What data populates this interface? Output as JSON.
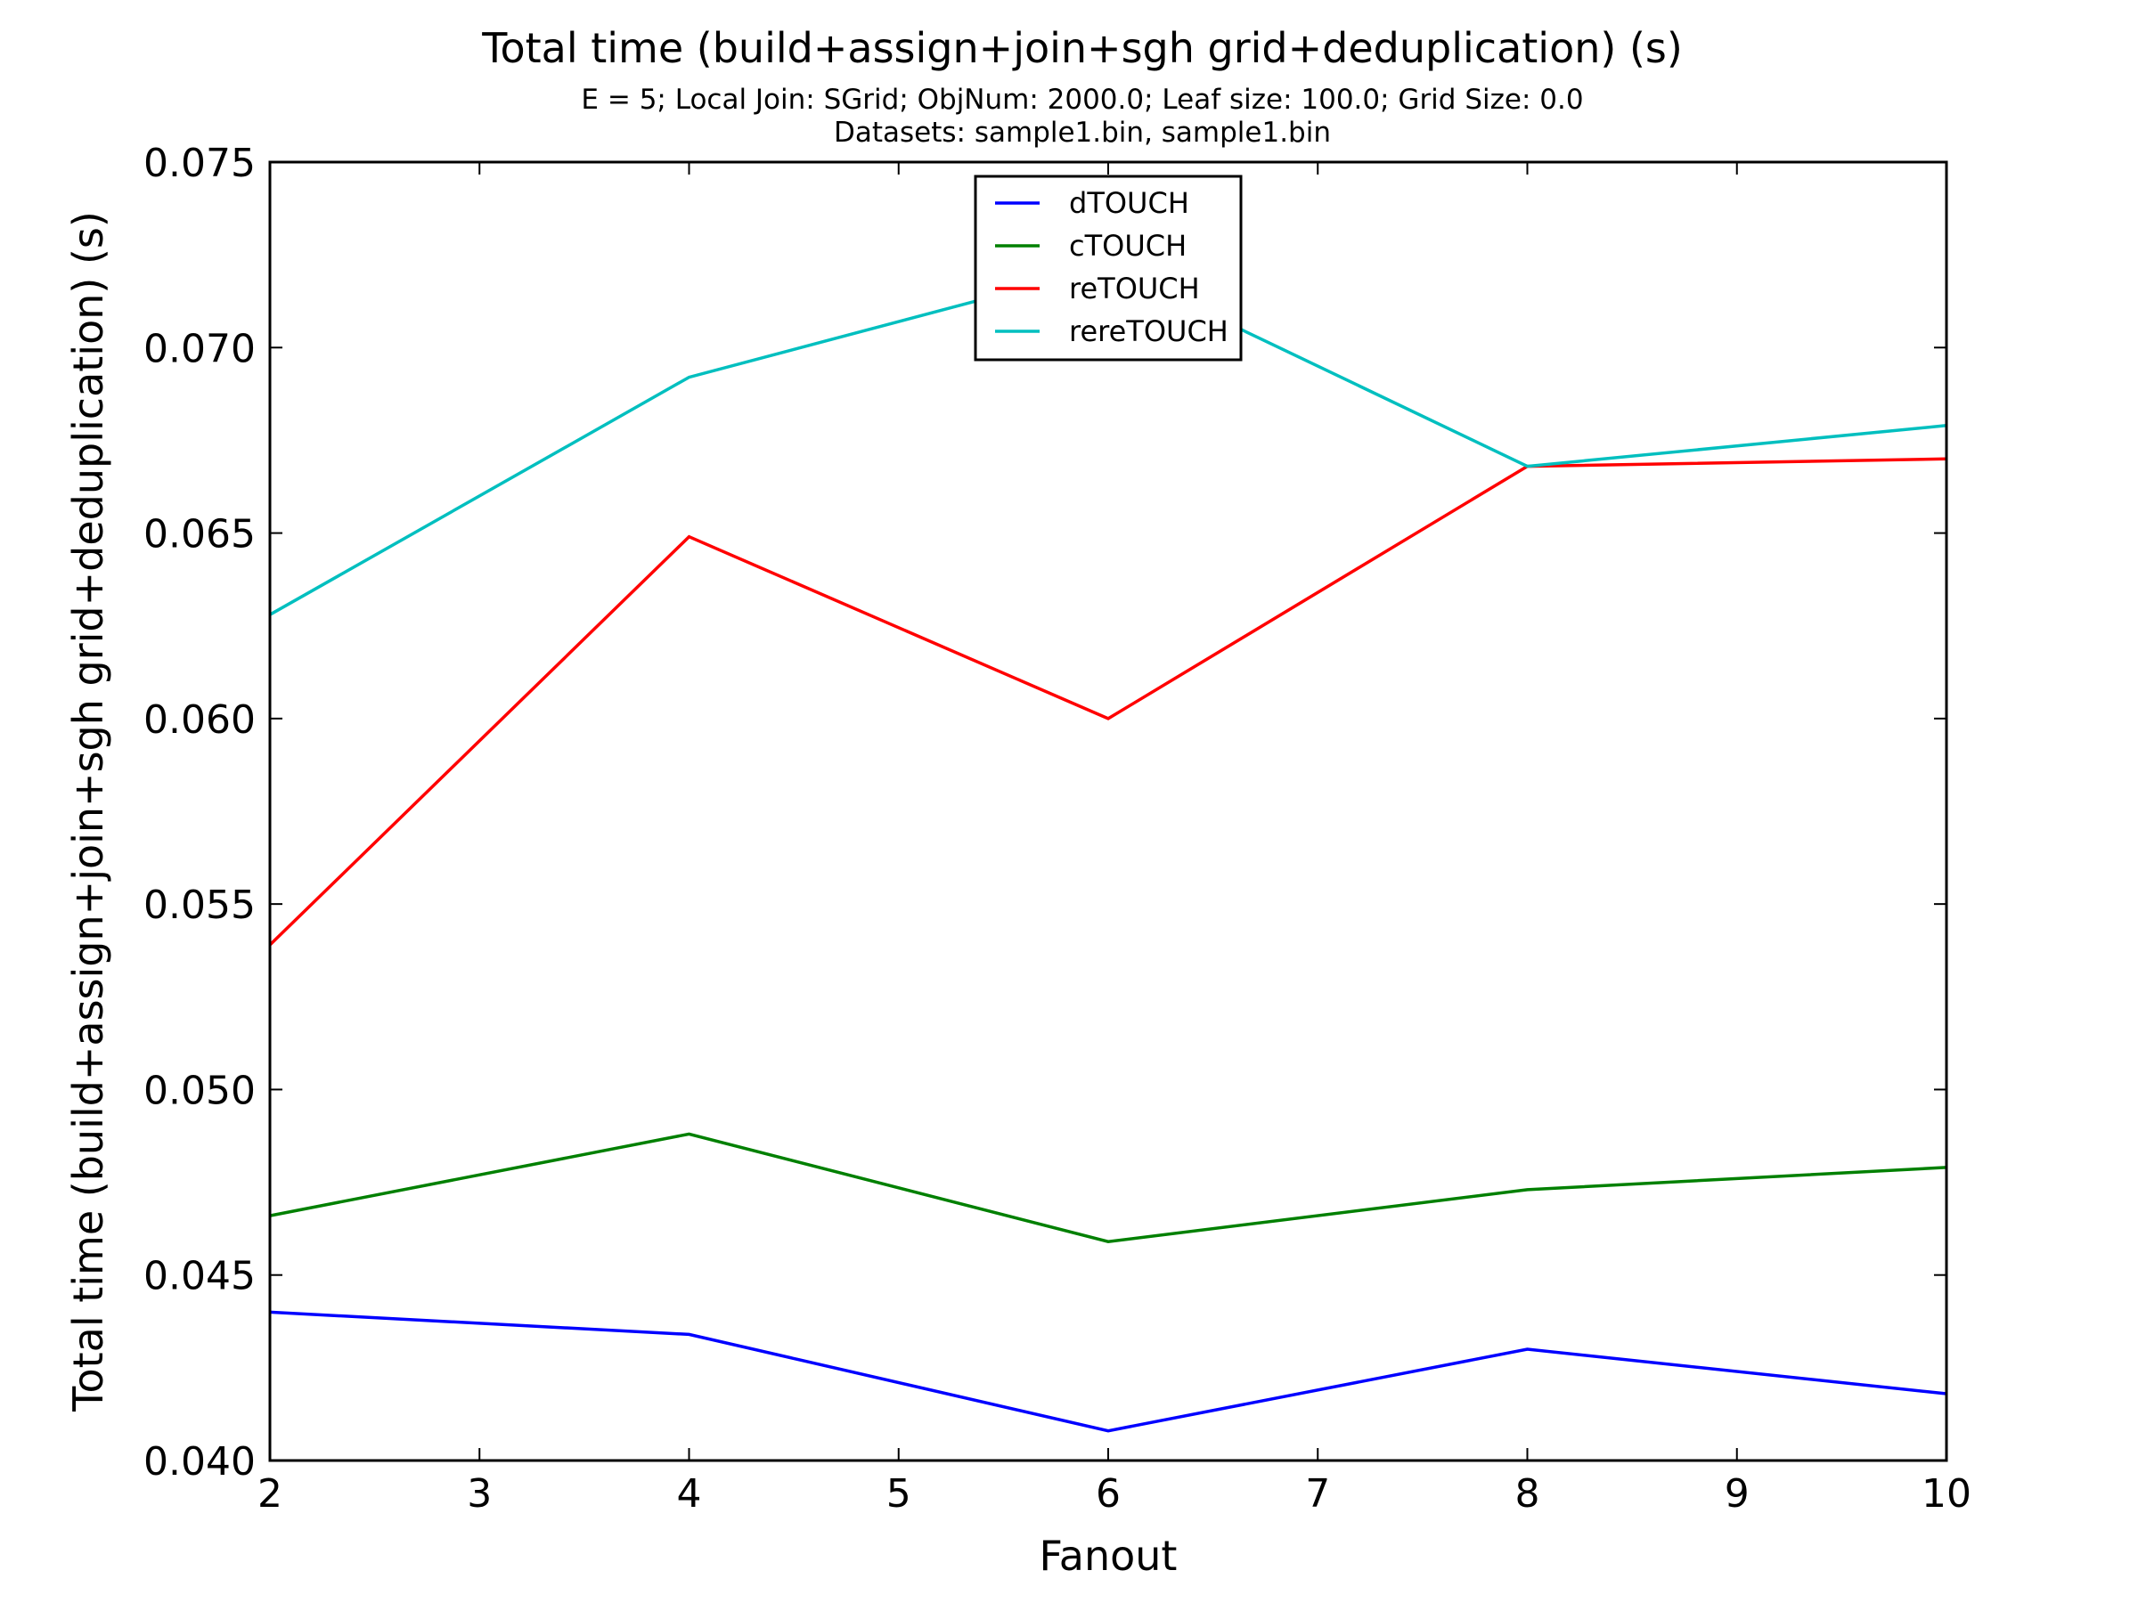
{
  "chart_data": {
    "type": "line",
    "title": "Total time (build+assign+join+sgh grid+deduplication) (s)",
    "subtitle_lines": [
      "E = 5; Local Join: SGrid; ObjNum: 2000.0; Leaf size: 100.0; Grid Size: 0.0",
      "Datasets: sample1.bin, sample1.bin"
    ],
    "xlabel": "Fanout",
    "ylabel": "Total time (build+assign+join+sgh grid+deduplication) (s)",
    "xlim": [
      2,
      10
    ],
    "ylim": [
      0.04,
      0.075
    ],
    "x_ticks": [
      2,
      3,
      4,
      5,
      6,
      7,
      8,
      9,
      10
    ],
    "x_tick_labels": [
      "2",
      "3",
      "4",
      "5",
      "6",
      "7",
      "8",
      "9",
      "10"
    ],
    "y_ticks": [
      0.04,
      0.045,
      0.05,
      0.055,
      0.06,
      0.065,
      0.07,
      0.075
    ],
    "y_tick_labels": [
      "0.040",
      "0.045",
      "0.050",
      "0.055",
      "0.060",
      "0.065",
      "0.070",
      "0.075"
    ],
    "grid": false,
    "legend_position": "top-center",
    "x": [
      2,
      4,
      6,
      8,
      10
    ],
    "series": [
      {
        "name": "dTOUCH",
        "color": "#0000ff",
        "values": [
          0.044,
          0.0434,
          0.0408,
          0.043,
          0.0418
        ]
      },
      {
        "name": "cTOUCH",
        "color": "#008000",
        "values": [
          0.0466,
          0.0488,
          0.0459,
          0.0473,
          0.0479
        ]
      },
      {
        "name": "reTOUCH",
        "color": "#ff0000",
        "values": [
          0.0539,
          0.0649,
          0.06,
          0.0668,
          0.067
        ]
      },
      {
        "name": "rereTOUCH",
        "color": "#00bfbf",
        "values": [
          0.0628,
          0.0692,
          0.0722,
          0.0668,
          0.0679
        ]
      }
    ]
  }
}
